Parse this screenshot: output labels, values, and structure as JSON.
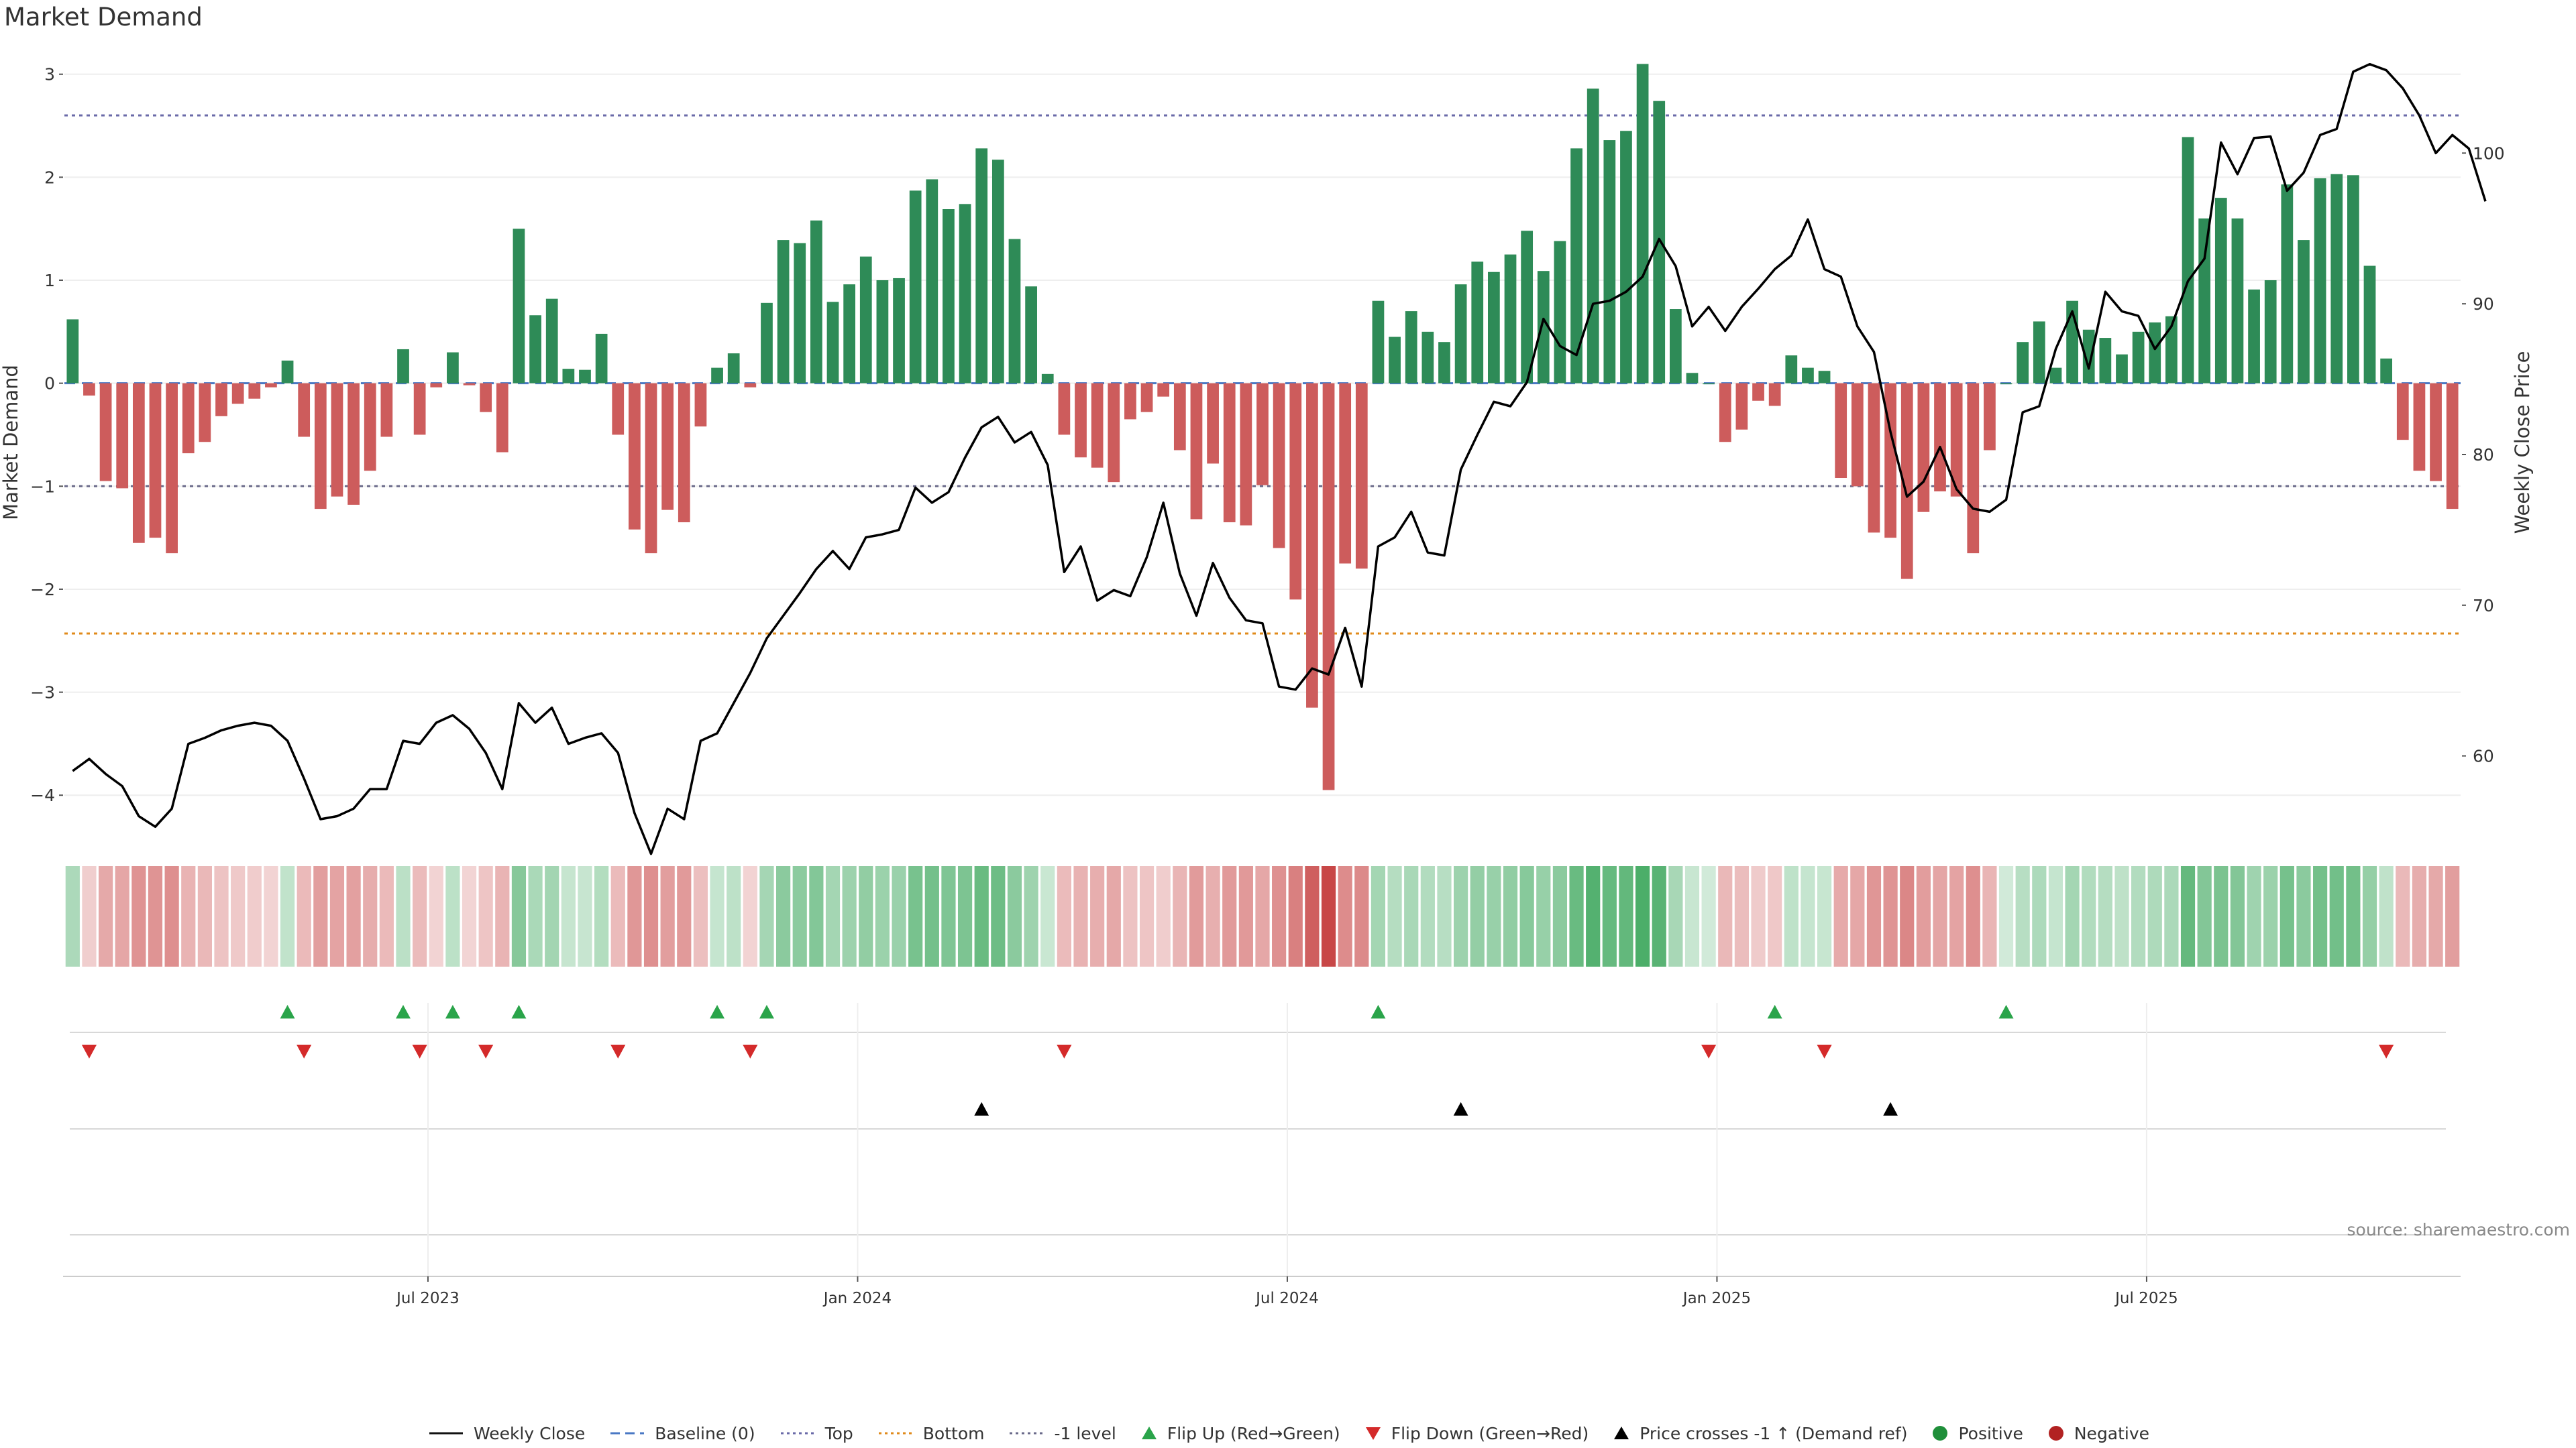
{
  "title": "Market Demand",
  "source": "source: sharemaestro.com",
  "colors": {
    "positive": "#2e8b57",
    "negative": "#cd5c5c",
    "price": "#000000",
    "top_line": "#6a6aa8",
    "bottom_line": "#e08a1a",
    "neg1_line": "#6a6a8a",
    "flip_up": "#2aa44a",
    "flip_down": "#d42a2a",
    "cross": "#000000",
    "legend_positive": "#1f8f3a",
    "legend_negative": "#b22222"
  },
  "chart_data": {
    "type": "bar",
    "title": "Market Demand",
    "ylabel": "Market Demand",
    "y2label": "Weekly Close Price",
    "ylim": [
      -4.35,
      3.2
    ],
    "y2lim": [
      55.0,
      106.6
    ],
    "yticks": [
      3,
      2,
      1,
      0,
      -1,
      -2,
      -3,
      -4
    ],
    "ytick_labels": [
      "3",
      "2",
      "1",
      "0",
      "−1",
      "−2",
      "−3",
      "−4"
    ],
    "y2ticks": [
      100,
      90,
      80,
      70,
      60
    ],
    "y2tick_labels": [
      "100",
      "90",
      "80",
      "70",
      "60"
    ],
    "x_tick_indices": [
      21.5,
      47.5,
      73.5,
      99.5,
      125.5
    ],
    "x_tick_labels": [
      "Jul 2023",
      "Jan 2024",
      "Jul 2024",
      "Jan 2025",
      "Jul 2025"
    ],
    "reference_lines": [
      {
        "name": "Top",
        "value": 2.6
      },
      {
        "name": "Bottom",
        "value": -2.43
      },
      {
        "name": "-1 level",
        "value": -1.0
      },
      {
        "name": "Baseline (0)",
        "value": 0
      }
    ],
    "demand": [
      0.62,
      -0.12,
      -0.95,
      -1.02,
      -1.55,
      -1.5,
      -1.65,
      -0.68,
      -0.57,
      -0.32,
      -0.2,
      -0.15,
      -0.04,
      0.22,
      -0.52,
      -1.22,
      -1.1,
      -1.18,
      -0.85,
      -0.52,
      0.33,
      -0.5,
      -0.04,
      0.3,
      -0.02,
      -0.28,
      -0.67,
      1.5,
      0.66,
      0.82,
      0.14,
      0.13,
      0.48,
      -0.5,
      -1.42,
      -1.65,
      -1.23,
      -1.35,
      -0.42,
      0.15,
      0.29,
      -0.04,
      0.78,
      1.39,
      1.36,
      1.58,
      0.79,
      0.96,
      1.23,
      1.0,
      1.02,
      1.87,
      1.98,
      1.69,
      1.74,
      2.28,
      2.17,
      1.4,
      0.94,
      0.09,
      -0.5,
      -0.72,
      -0.82,
      -0.96,
      -0.35,
      -0.28,
      -0.13,
      -0.65,
      -1.32,
      -0.78,
      -1.35,
      -1.38,
      -0.99,
      -1.6,
      -2.1,
      -3.15,
      -3.95,
      -1.75,
      -1.8,
      0.8,
      0.45,
      0.7,
      0.5,
      0.4,
      0.96,
      1.18,
      1.08,
      1.25,
      1.48,
      1.09,
      1.38,
      2.28,
      2.86,
      2.36,
      2.45,
      3.1,
      2.74,
      0.72,
      0.1,
      0.0,
      -0.57,
      -0.45,
      -0.17,
      -0.22,
      0.27,
      0.15,
      0.12,
      -0.92,
      -1.0,
      -1.45,
      -1.5,
      -1.9,
      -1.25,
      -1.05,
      -1.1,
      -1.65,
      -0.65,
      0.0,
      0.4,
      0.6,
      0.15,
      0.8,
      0.52,
      0.44,
      0.28,
      0.5,
      0.59,
      0.65,
      2.39,
      1.6,
      1.8,
      1.6,
      0.91,
      1.0,
      1.93,
      1.39,
      1.99,
      2.03,
      2.02,
      1.14,
      0.24,
      -0.55,
      -0.85,
      -0.95,
      -1.22
    ],
    "weekly_close": [
      59.0,
      59.8,
      58.8,
      58.0,
      56.0,
      55.3,
      56.5,
      60.8,
      61.2,
      61.7,
      62.0,
      62.2,
      62.0,
      61.0,
      58.5,
      55.8,
      56.0,
      56.5,
      57.8,
      57.8,
      61.0,
      60.8,
      62.2,
      62.7,
      61.8,
      60.2,
      57.8,
      63.5,
      62.2,
      63.2,
      60.8,
      61.2,
      61.5,
      60.2,
      56.2,
      53.5,
      56.5,
      55.8,
      61.0,
      61.5,
      63.5,
      65.5,
      67.8,
      69.3,
      70.8,
      72.4,
      73.6,
      72.4,
      74.5,
      74.7,
      75.0,
      77.8,
      76.8,
      77.5,
      79.8,
      81.8,
      82.5,
      80.8,
      81.5,
      79.3,
      72.2,
      73.9,
      70.3,
      71.0,
      70.6,
      73.2,
      76.8,
      72.1,
      69.3,
      72.8,
      70.5,
      69.0,
      68.8,
      64.6,
      64.4,
      65.8,
      65.4,
      68.5,
      64.6,
      73.9,
      74.5,
      76.2,
      73.5,
      73.3,
      79.0,
      81.3,
      83.5,
      83.2,
      84.8,
      89.0,
      87.2,
      86.6,
      90.0,
      90.2,
      90.8,
      91.8,
      94.3,
      92.5,
      88.5,
      89.8,
      88.2,
      89.8,
      91.0,
      92.3,
      93.2,
      95.6,
      92.3,
      91.8,
      88.5,
      86.8,
      81.5,
      77.2,
      78.2,
      80.5,
      77.7,
      76.4,
      76.2,
      77.0,
      82.8,
      83.2,
      87.0,
      89.5,
      85.7,
      90.8,
      89.5,
      89.2,
      87.0,
      88.5,
      91.5,
      93.0,
      100.7,
      98.6,
      101.0,
      101.1,
      97.5,
      98.7,
      101.2,
      101.6,
      105.4,
      105.9,
      105.5,
      104.3,
      102.5,
      100.0,
      101.2,
      100.3,
      96.8
    ],
    "flip_up_indices": [
      13,
      20,
      23,
      27,
      39,
      42,
      79,
      103,
      117
    ],
    "flip_down_indices": [
      1,
      14,
      21,
      25,
      33,
      41,
      60,
      99,
      106,
      140
    ],
    "price_cross_indices": [
      55,
      84,
      110
    ],
    "heat_indices_note": "weekly heat strip mirrors demand values"
  },
  "legend": {
    "items": [
      {
        "label": "Weekly Close",
        "symbol": "solid-line"
      },
      {
        "label": "Baseline (0)",
        "symbol": "dash-line-blue"
      },
      {
        "label": "Top",
        "symbol": "dot-line-purple"
      },
      {
        "label": "Bottom",
        "symbol": "dot-line-orange"
      },
      {
        "label": "-1 level",
        "symbol": "dot-line-gray"
      },
      {
        "label": "Flip Up (Red→Green)",
        "symbol": "triangle-up-green"
      },
      {
        "label": "Flip Down (Green→Red)",
        "symbol": "triangle-down-red"
      },
      {
        "label": "Price crosses -1 ↑ (Demand ref)",
        "symbol": "triangle-up-black"
      },
      {
        "label": "Positive",
        "symbol": "circle-green"
      },
      {
        "label": "Negative",
        "symbol": "circle-red"
      }
    ]
  }
}
